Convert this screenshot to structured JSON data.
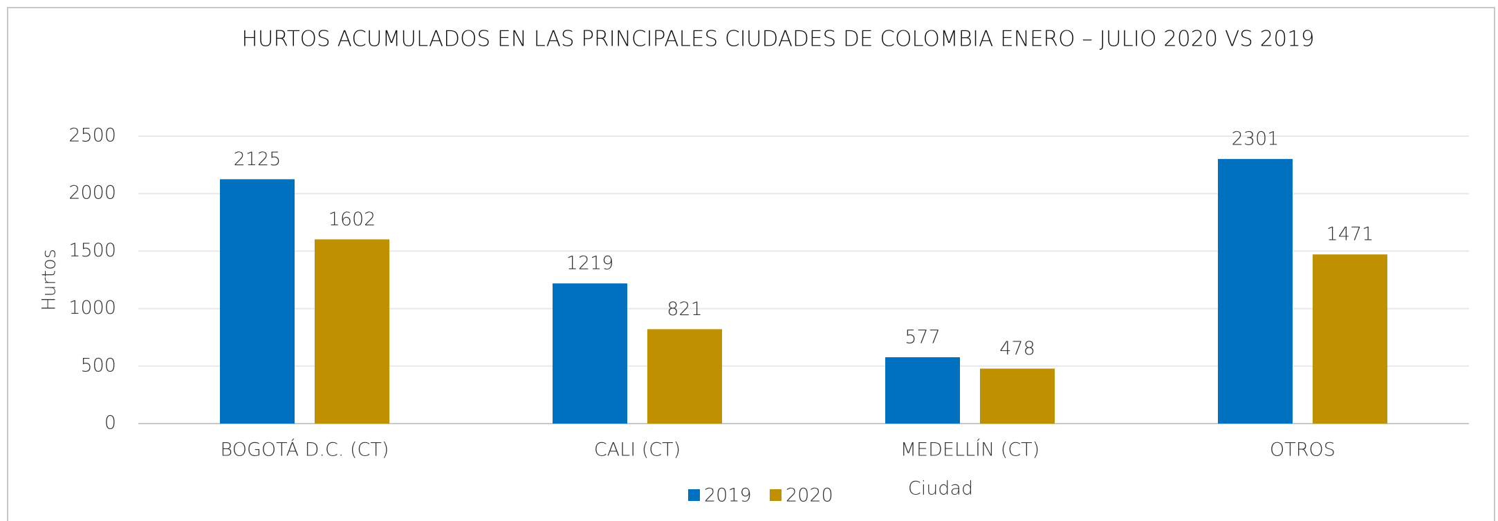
{
  "chart_data": {
    "type": "bar",
    "title": "HURTOS ACUMULADOS EN LAS PRINCIPALES CIUDADES DE COLOMBIA ENERO – JULIO 2020 VS 2019",
    "x_label": "Ciudad",
    "y_label": "Hurtos",
    "categories": [
      "BOGOTÁ D.C. (CT)",
      "CALI (CT)",
      "MEDELLÍN (CT)",
      "OTROS"
    ],
    "series": [
      {
        "name": "2019",
        "color": "#0070c0",
        "values": [
          2125,
          1219,
          577,
          2301
        ]
      },
      {
        "name": "2020",
        "color": "#bf9000",
        "values": [
          1602,
          821,
          478,
          1471
        ]
      }
    ],
    "ylim": [
      0,
      2500
    ],
    "yticks": [
      0,
      500,
      1000,
      1500,
      2000,
      2500
    ],
    "grid": true,
    "legend": "bottom"
  }
}
